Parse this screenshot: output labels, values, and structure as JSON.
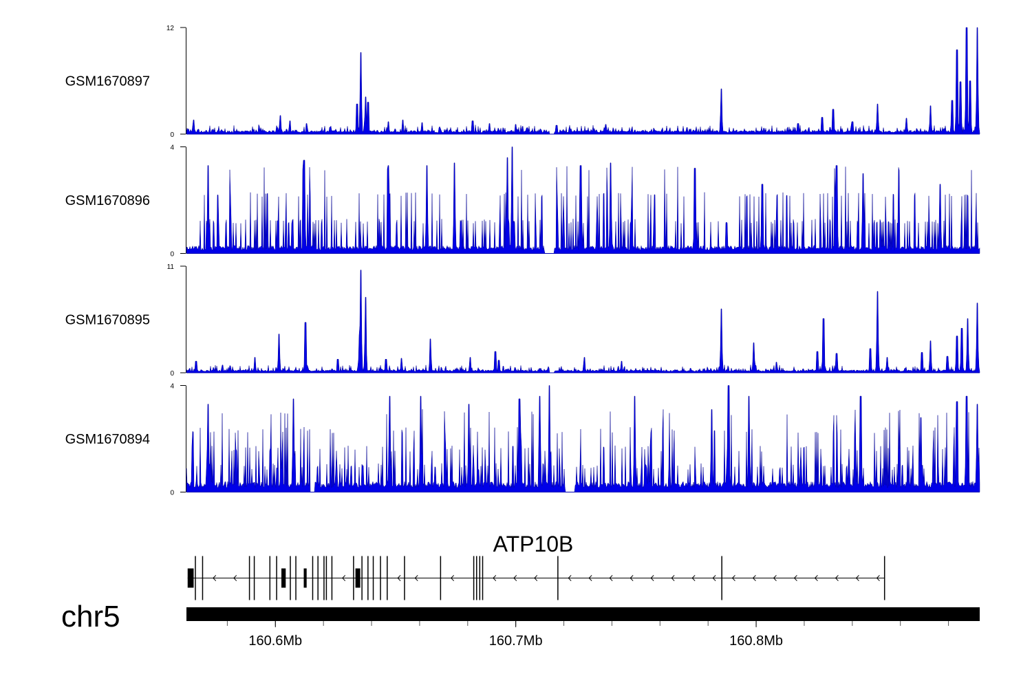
{
  "chart_data": {
    "type": "area",
    "title": "",
    "chromosome": "chr5",
    "x_range_mb": [
      160.563,
      160.893
    ],
    "x_ticks": [
      {
        "value": 160.6,
        "label": "160.6Mb"
      },
      {
        "value": 160.7,
        "label": "160.7Mb"
      },
      {
        "value": 160.8,
        "label": "160.8Mb"
      }
    ],
    "tracks": [
      {
        "name": "GSM1670897",
        "ymax": 12,
        "ymax_label": "12",
        "ymin_label": "0",
        "baseline": 0.4,
        "noise": 0.7,
        "seed": 11,
        "gaps": [
          [
            160.714,
            160.716
          ]
        ],
        "peaks": [
          [
            160.566,
            1.6
          ],
          [
            160.602,
            2.1
          ],
          [
            160.606,
            1.5
          ],
          [
            160.613,
            1.2
          ],
          [
            160.634,
            3.4
          ],
          [
            160.6355,
            9.2
          ],
          [
            160.6375,
            4.2
          ],
          [
            160.6385,
            3.6
          ],
          [
            160.647,
            1.4
          ],
          [
            160.653,
            1.6
          ],
          [
            160.661,
            1.3
          ],
          [
            160.682,
            1.5
          ],
          [
            160.689,
            1.2
          ],
          [
            160.7,
            1.1
          ],
          [
            160.717,
            1.0
          ],
          [
            160.7375,
            1.1
          ],
          [
            160.7855,
            5.1
          ],
          [
            160.8175,
            1.2
          ],
          [
            160.8275,
            1.9
          ],
          [
            160.832,
            2.8
          ],
          [
            160.84,
            1.4
          ],
          [
            160.8505,
            3.4
          ],
          [
            160.8625,
            1.8
          ],
          [
            160.8725,
            3.2
          ],
          [
            160.8815,
            3.8
          ],
          [
            160.8835,
            9.5
          ],
          [
            160.885,
            5.9
          ],
          [
            160.8875,
            12
          ],
          [
            160.889,
            6.0
          ],
          [
            160.892,
            12
          ]
        ]
      },
      {
        "name": "GSM1670896",
        "ymax": 4,
        "ymax_label": "4",
        "ymin_label": "0",
        "baseline": 0.3,
        "noise": 2.7,
        "seed": 23,
        "quantize": 1,
        "gaps": [
          [
            160.712,
            160.716
          ]
        ],
        "peaks": [
          [
            160.572,
            3.3
          ],
          [
            160.612,
            3.5
          ],
          [
            160.647,
            3.3
          ],
          [
            160.663,
            3.3
          ],
          [
            160.6745,
            3.4
          ],
          [
            160.6965,
            3.6
          ],
          [
            160.6985,
            4.0
          ],
          [
            160.727,
            3.3
          ],
          [
            160.7395,
            3.4
          ],
          [
            160.7745,
            3.2
          ],
          [
            160.8025,
            2.6
          ],
          [
            160.8335,
            3.3
          ],
          [
            160.8445,
            3.0
          ],
          [
            160.8765,
            2.6
          ]
        ]
      },
      {
        "name": "GSM1670895",
        "ymax": 11,
        "ymax_label": "11",
        "ymin_label": "0",
        "baseline": 0.3,
        "noise": 0.55,
        "seed": 37,
        "gaps": [
          [
            160.714,
            160.716
          ]
        ],
        "peaks": [
          [
            160.567,
            1.2
          ],
          [
            160.578,
            0.8
          ],
          [
            160.5915,
            1.6
          ],
          [
            160.6015,
            4.0
          ],
          [
            160.6125,
            5.2
          ],
          [
            160.626,
            1.4
          ],
          [
            160.635,
            3.9
          ],
          [
            160.6355,
            10.6
          ],
          [
            160.6375,
            7.8
          ],
          [
            160.646,
            1.4
          ],
          [
            160.6525,
            1.5
          ],
          [
            160.6645,
            3.5
          ],
          [
            160.681,
            1.6
          ],
          [
            160.6915,
            2.2
          ],
          [
            160.693,
            1.3
          ],
          [
            160.7285,
            1.6
          ],
          [
            160.744,
            1.2
          ],
          [
            160.7855,
            6.6
          ],
          [
            160.799,
            3.1
          ],
          [
            160.8085,
            1.1
          ],
          [
            160.8255,
            2.2
          ],
          [
            160.828,
            5.6
          ],
          [
            160.8335,
            2.0
          ],
          [
            160.8475,
            2.5
          ],
          [
            160.8505,
            8.4
          ],
          [
            160.8545,
            1.6
          ],
          [
            160.869,
            2.1
          ],
          [
            160.8725,
            3.3
          ],
          [
            160.8795,
            1.7
          ],
          [
            160.8835,
            3.8
          ],
          [
            160.8855,
            4.6
          ],
          [
            160.888,
            5.6
          ],
          [
            160.892,
            7.2
          ]
        ]
      },
      {
        "name": "GSM1670894",
        "ymax": 4,
        "ymax_label": "4",
        "ymin_label": "0",
        "baseline": 0.4,
        "noise": 2.7,
        "seed": 59,
        "quantize": 0.68,
        "gaps": [
          [
            160.6145,
            160.6165
          ],
          [
            160.7205,
            160.7245
          ]
        ],
        "peaks": [
          [
            160.572,
            3.3
          ],
          [
            160.6075,
            3.5
          ],
          [
            160.6155,
            3.8
          ],
          [
            160.6475,
            3.6
          ],
          [
            160.6605,
            3.6
          ],
          [
            160.6805,
            3.3
          ],
          [
            160.7015,
            3.5
          ],
          [
            160.71,
            3.6
          ],
          [
            160.714,
            4.0
          ],
          [
            160.7495,
            3.6
          ],
          [
            160.7815,
            3.1
          ],
          [
            160.7885,
            4.0
          ],
          [
            160.797,
            3.6
          ],
          [
            160.8435,
            3.6
          ],
          [
            160.8685,
            2.8
          ],
          [
            160.8835,
            3.4
          ],
          [
            160.8875,
            3.6
          ],
          [
            160.892,
            3.3
          ]
        ]
      }
    ],
    "gene": {
      "name": "ATP10B",
      "strand": "-",
      "start": 160.5635,
      "end": 160.8535,
      "exons": [
        [
          160.5635,
          160.566
        ],
        [
          160.5665,
          160.5668
        ],
        [
          160.5695,
          160.5698
        ],
        [
          160.589,
          160.5893
        ],
        [
          160.591,
          160.5913
        ],
        [
          160.5975,
          160.5978
        ],
        [
          160.6003,
          160.6006
        ],
        [
          160.6025,
          160.6043
        ],
        [
          160.606,
          160.6063
        ],
        [
          160.6083,
          160.6086
        ],
        [
          160.6118,
          160.613
        ],
        [
          160.6153,
          160.6156
        ],
        [
          160.6175,
          160.6178
        ],
        [
          160.62,
          160.6203
        ],
        [
          160.621,
          160.6213
        ],
        [
          160.6233,
          160.6236
        ],
        [
          160.6323,
          160.6326
        ],
        [
          160.6333,
          160.6353
        ],
        [
          160.6358,
          160.6361
        ],
        [
          160.6383,
          160.6386
        ],
        [
          160.6405,
          160.6408
        ],
        [
          160.6435,
          160.6438
        ],
        [
          160.6463,
          160.6466
        ],
        [
          160.6535,
          160.6538
        ],
        [
          160.6685,
          160.6688
        ],
        [
          160.6823,
          160.6826
        ],
        [
          160.6835,
          160.6838
        ],
        [
          160.6848,
          160.6851
        ],
        [
          160.686,
          160.6863
        ],
        [
          160.7173,
          160.7176
        ],
        [
          160.7855,
          160.7858
        ],
        [
          160.8532,
          160.8535
        ]
      ]
    }
  }
}
